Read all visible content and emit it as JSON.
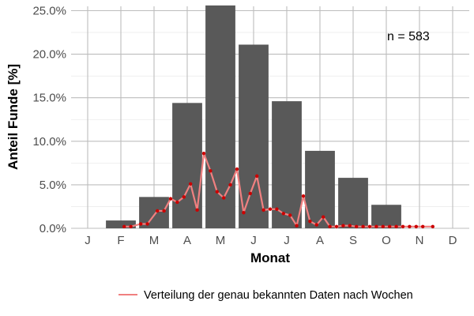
{
  "chart_data": {
    "type": "bar",
    "ylabel": "Anteil Funde [%]",
    "xlabel": "Monat",
    "annotation": "n = 583",
    "categories": [
      "J",
      "F",
      "M",
      "A",
      "M",
      "J",
      "J",
      "A",
      "S",
      "O",
      "N",
      "D"
    ],
    "yticks": [
      "0.0%",
      "5.0%",
      "10.0%",
      "15.0%",
      "20.0%",
      "25.0%"
    ],
    "ylim": [
      0,
      25.5
    ],
    "grid": true,
    "legend_position": "bottom",
    "colors": {
      "bar": "#595959",
      "line": "#f08080",
      "point": "#cc0000",
      "grid": "#bdbdbd"
    },
    "series": [
      {
        "type": "bar",
        "values": [
          0.0,
          0.9,
          3.6,
          14.4,
          25.6,
          21.1,
          14.6,
          8.9,
          5.8,
          2.7,
          0.0,
          0.0
        ]
      },
      {
        "type": "line",
        "name": "Verteilung der genau bekannten Daten nach Wochen",
        "x": [
          1.1,
          1.3,
          1.6,
          1.8,
          2.1,
          2.3,
          2.5,
          2.7,
          2.9,
          3.1,
          3.3,
          3.5,
          3.7,
          3.9,
          4.1,
          4.3,
          4.5,
          4.7,
          4.9,
          5.1,
          5.3,
          5.5,
          5.7,
          5.9,
          6.1,
          6.3,
          6.5,
          6.7,
          6.9,
          7.1,
          7.3,
          7.5,
          7.7,
          7.9,
          8.1,
          8.3,
          8.5,
          8.7,
          8.9,
          9.1,
          9.3,
          9.5,
          9.7,
          9.9,
          10.1,
          10.4
        ],
        "values": [
          0.2,
          0.2,
          0.5,
          0.5,
          2.0,
          2.0,
          3.4,
          3.0,
          3.6,
          5.1,
          2.1,
          8.6,
          6.6,
          4.2,
          3.5,
          5.0,
          6.8,
          1.8,
          4.0,
          6.0,
          2.1,
          2.2,
          2.2,
          1.7,
          1.5,
          0.3,
          3.7,
          0.8,
          0.4,
          1.3,
          0.2,
          0.2,
          0.3,
          0.3,
          0.2,
          0.2,
          0.2,
          0.2,
          0.2,
          0.2,
          0.2,
          0.2,
          0.2,
          0.2,
          0.2,
          0.2
        ]
      }
    ]
  }
}
